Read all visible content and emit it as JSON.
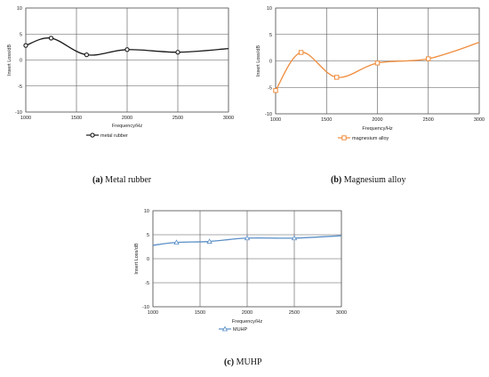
{
  "chart_data": [
    {
      "type": "line",
      "caption_label": "(a)",
      "caption_text": " Metal rubber",
      "xlabel": "Frequency/Hz",
      "ylabel": "Insert Loss/dB",
      "xlim": [
        1000,
        3000
      ],
      "ylim": [
        -10,
        10
      ],
      "x_ticks": [
        1000,
        1500,
        2000,
        2500,
        3000
      ],
      "y_ticks": [
        -10,
        -5,
        0,
        5,
        10
      ],
      "grid": true,
      "legend": "bottom-center",
      "series": [
        {
          "name": "metal rubber",
          "color": "#1a1a1a",
          "marker": "circle",
          "x": [
            1000,
            1250,
            1600,
            2000,
            2500,
            3000
          ],
          "y": [
            2.8,
            4.2,
            1.0,
            2.0,
            1.5,
            2.2
          ],
          "marker_indices": [
            0,
            1,
            2,
            3,
            4
          ]
        }
      ]
    },
    {
      "type": "line",
      "caption_label": "(b)",
      "caption_text": " Magnesium alloy",
      "xlabel": "Frequency/Hz",
      "ylabel": "Insert Loss/dB",
      "xlim": [
        1000,
        3000
      ],
      "ylim": [
        -10,
        10
      ],
      "x_ticks": [
        1000,
        1500,
        2000,
        2500,
        3000
      ],
      "y_ticks": [
        -10,
        -5,
        0,
        5,
        10
      ],
      "grid": true,
      "legend": "bottom-center",
      "series": [
        {
          "name": "magnesium alloy",
          "color": "#f08c3c",
          "marker": "square",
          "x": [
            1000,
            1250,
            1600,
            2000,
            2500,
            3000
          ],
          "y": [
            -5.6,
            1.6,
            -3.1,
            -0.4,
            0.4,
            3.5
          ],
          "marker_indices": [
            0,
            1,
            2,
            3,
            4
          ]
        }
      ]
    },
    {
      "type": "line",
      "caption_label": "(c)",
      "caption_text": " MUHP",
      "xlabel": "Frequency/Hz",
      "ylabel": "Insert Loss/dB",
      "xlim": [
        1000,
        3000
      ],
      "ylim": [
        -10,
        10
      ],
      "x_ticks": [
        1000,
        1500,
        2000,
        2500,
        3000
      ],
      "y_ticks": [
        -10,
        -5,
        0,
        5,
        10
      ],
      "grid": true,
      "legend": "bottom-center",
      "series": [
        {
          "name": "MUHP",
          "color": "#5b8fc7",
          "marker": "triangle",
          "x": [
            1000,
            1250,
            1600,
            2000,
            2500,
            3000
          ],
          "y": [
            2.8,
            3.4,
            3.6,
            4.3,
            4.3,
            4.8
          ],
          "marker_indices": [
            1,
            2,
            3,
            4
          ]
        }
      ]
    }
  ]
}
